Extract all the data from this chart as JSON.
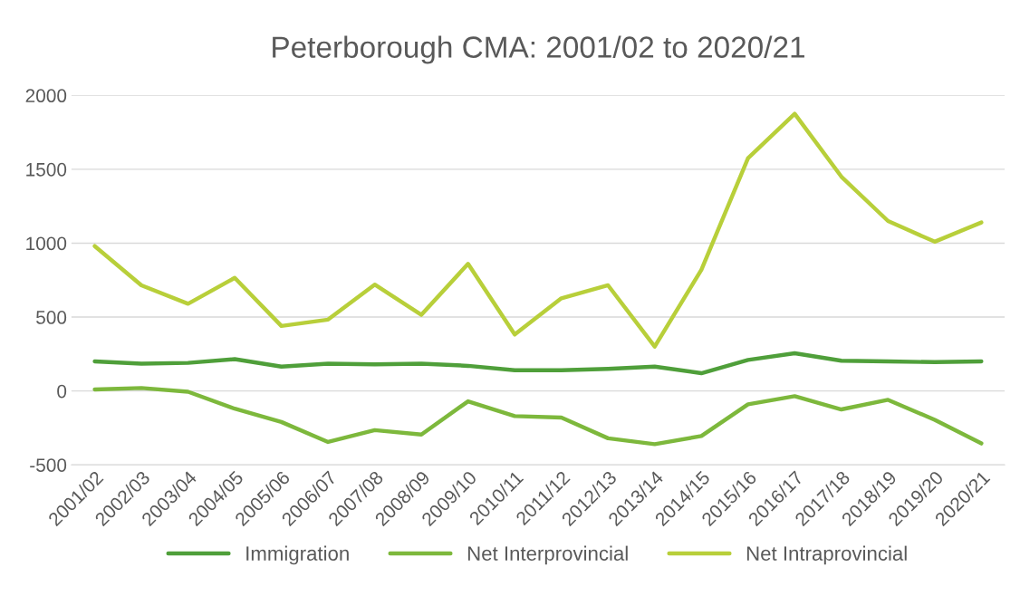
{
  "chart_data": {
    "type": "line",
    "title": "Peterborough CMA: 2001/02 to 2020/21",
    "categories": [
      "2001/02",
      "2002/03",
      "2003/04",
      "2004/05",
      "2005/06",
      "2006/07",
      "2007/08",
      "2008/09",
      "2009/10",
      "2010/11",
      "2011/12",
      "2012/13",
      "2013/14",
      "2014/15",
      "2015/16",
      "2016/17",
      "2017/18",
      "2018/19",
      "2019/20",
      "2020/21"
    ],
    "series": [
      {
        "name": "Immigration",
        "color": "#4f9f3a",
        "values": [
          200,
          185,
          190,
          215,
          165,
          185,
          180,
          185,
          170,
          140,
          140,
          150,
          165,
          120,
          210,
          255,
          205,
          200,
          195,
          200
        ]
      },
      {
        "name": "Net Interprovincial",
        "color": "#7db83c",
        "values": [
          10,
          20,
          -5,
          -120,
          -210,
          -345,
          -265,
          -295,
          -70,
          -170,
          -180,
          -320,
          -360,
          -305,
          -90,
          -35,
          -125,
          -60,
          -195,
          -355
        ]
      },
      {
        "name": "Net Intraprovincial",
        "color": "#b8cf3a",
        "values": [
          980,
          715,
          590,
          765,
          440,
          483,
          720,
          515,
          860,
          382,
          627,
          715,
          300,
          820,
          1575,
          1875,
          1450,
          1150,
          1010,
          1140
        ]
      }
    ],
    "ylim": [
      -500,
      2000
    ],
    "yticks": [
      -500,
      0,
      500,
      1000,
      1500,
      2000
    ],
    "grid": "y",
    "legend": "bottom",
    "marker": "none",
    "line_style": "solid"
  }
}
